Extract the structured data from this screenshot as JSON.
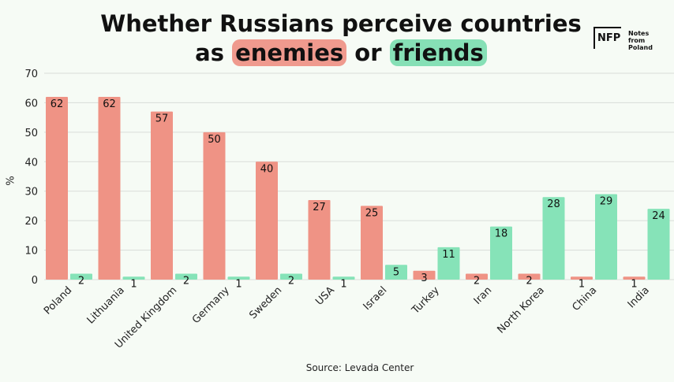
{
  "title_parts": {
    "line1": "Whether Russians perceive countries",
    "line2_pre": "as ",
    "line2_enemy": "enemies",
    "line2_mid": " or ",
    "line2_friend": "friends"
  },
  "logo": {
    "mark": "NFP",
    "line1": "Notes from",
    "line2": "Poland"
  },
  "source": "Source: Levada Center",
  "colors": {
    "enemies": "#ef9385",
    "friends": "#86e3b8",
    "grid": "#d9ddd9"
  },
  "chart_data": {
    "type": "bar",
    "categories": [
      "Poland",
      "Lithuania",
      "United Kingdom",
      "Germany",
      "Sweden",
      "USA",
      "Israel",
      "Turkey",
      "Iran",
      "North Korea",
      "China",
      "India"
    ],
    "series": [
      {
        "values": [
          62,
          62,
          57,
          50,
          40,
          27,
          25,
          3,
          2,
          2,
          1,
          1
        ]
      },
      {
        "values": [
          2,
          1,
          2,
          1,
          2,
          1,
          5,
          11,
          18,
          28,
          29,
          24
        ]
      }
    ],
    "ylabel": "%",
    "ylim": [
      0,
      70
    ],
    "yticks": [
      0,
      10,
      20,
      30,
      40,
      50,
      60,
      70
    ],
    "grid": true
  }
}
